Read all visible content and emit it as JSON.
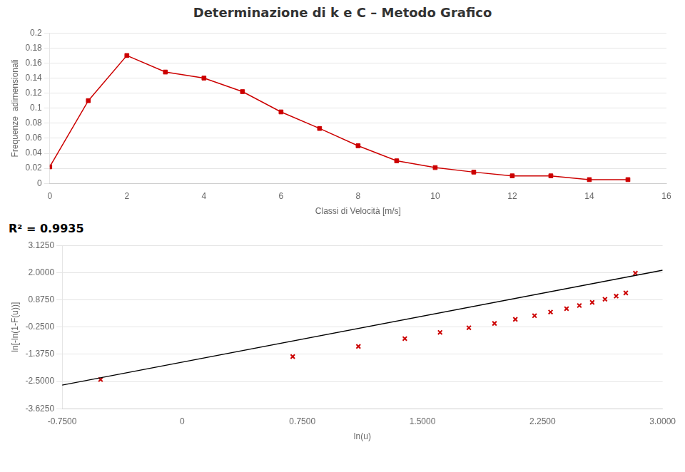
{
  "title": "Determinazione di k e C – Metodo Grafico",
  "chart_data": [
    {
      "type": "line",
      "x": [
        0,
        1,
        2,
        3,
        4,
        5,
        6,
        7,
        8,
        9,
        10,
        11,
        12,
        13,
        14,
        15
      ],
      "values": [
        0.022,
        0.11,
        0.17,
        0.148,
        0.14,
        0.122,
        0.095,
        0.073,
        0.05,
        0.03,
        0.021,
        0.015,
        0.01,
        0.01,
        0.005,
        0.005
      ],
      "color": "#cc0000",
      "marker": "square",
      "x_label": "Classi di Velocità [m/s]",
      "y_label": "Frequenze  adimensionali",
      "xlim": [
        0,
        16
      ],
      "xticks": [
        0,
        2,
        4,
        6,
        8,
        10,
        12,
        14,
        16
      ],
      "ylim": [
        0,
        0.2
      ],
      "yticks": [
        0,
        0.02,
        0.04,
        0.06,
        0.08,
        0.1,
        0.12,
        0.14,
        0.16,
        0.18,
        0.2
      ],
      "grid": "y"
    },
    {
      "type": "scatter",
      "series": [
        {
          "type": "line",
          "color": "#000000",
          "x": [
            -0.75,
            3.0
          ],
          "values": [
            -2.65,
            2.1
          ]
        },
        {
          "type": "scatter",
          "color": "#cc0000",
          "marker": "x",
          "x": [
            -0.51,
            0.69,
            1.1,
            1.39,
            1.61,
            1.79,
            1.95,
            2.08,
            2.2,
            2.3,
            2.4,
            2.48,
            2.56,
            2.64,
            2.71,
            2.77,
            2.83
          ],
          "values": [
            -2.42,
            -1.47,
            -1.05,
            -0.73,
            -0.47,
            -0.28,
            -0.1,
            0.07,
            0.22,
            0.37,
            0.51,
            0.64,
            0.77,
            0.9,
            1.03,
            1.16,
            1.98
          ]
        }
      ],
      "x_label": "ln(u)",
      "y_label": "ln[-ln(1-F(u))]",
      "xlim": [
        -0.75,
        3.0
      ],
      "xticks": [
        {
          "value": -0.75,
          "label": "-0.7500"
        },
        0,
        {
          "value": 0.75,
          "label": "0.7500"
        },
        {
          "value": 1.5,
          "label": "1.5000"
        },
        {
          "value": 2.25,
          "label": "2.2500"
        },
        {
          "value": 3.0,
          "label": "3.0000"
        }
      ],
      "ylim": [
        -3.625,
        3.125
      ],
      "yticks": [
        {
          "value": -3.625,
          "label": "-3.6250"
        },
        {
          "value": -2.5,
          "label": "-2.5000"
        },
        {
          "value": -1.375,
          "label": "-1.3750"
        },
        {
          "value": -0.25,
          "label": "-0.2500"
        },
        {
          "value": 0.875,
          "label": "0.8750"
        },
        {
          "value": 2.0,
          "label": "2.0000"
        },
        {
          "value": 3.125,
          "label": "3.1250"
        }
      ],
      "annotations": [
        "R² = 0.9935"
      ],
      "grid": "y"
    }
  ]
}
